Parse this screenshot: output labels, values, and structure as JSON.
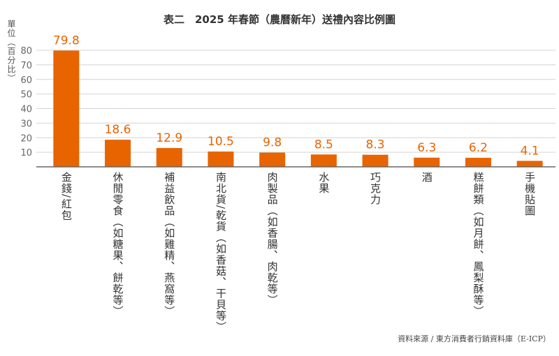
{
  "chart_data": {
    "type": "bar",
    "title": "表二　2025 年春節（農曆新年）送禮內容比例圖",
    "ylabel": "單位（百分比）",
    "xlabel": "",
    "categories": [
      "金錢/紅包",
      "休閒零食（如糖果、餅乾等）",
      "補益飲品（如雞精、燕窩等）",
      "南北貨/乾貨（如香菇、干貝等）",
      "肉製品（如香腸、肉乾等）",
      "水果",
      "巧克力",
      "酒",
      "糕餅類（如月餅、鳳梨酥等）",
      "手機貼圖"
    ],
    "values": [
      79.8,
      18.6,
      12.9,
      10.5,
      9.8,
      8.5,
      8.3,
      6.3,
      6.2,
      4.1
    ],
    "data_labels": [
      "79.8",
      "18.6",
      "12.9",
      "10.5",
      "9.8",
      "8.5",
      "8.3",
      "6.3",
      "6.2",
      "4.1"
    ],
    "ylim": [
      0,
      80
    ],
    "yticks": [
      10,
      20,
      30,
      40,
      50,
      60,
      70,
      80
    ],
    "grid": true,
    "bar_color": "#E86400",
    "source": "資料來源 / 東方消費者行銷資料庫（E-ICP）"
  }
}
